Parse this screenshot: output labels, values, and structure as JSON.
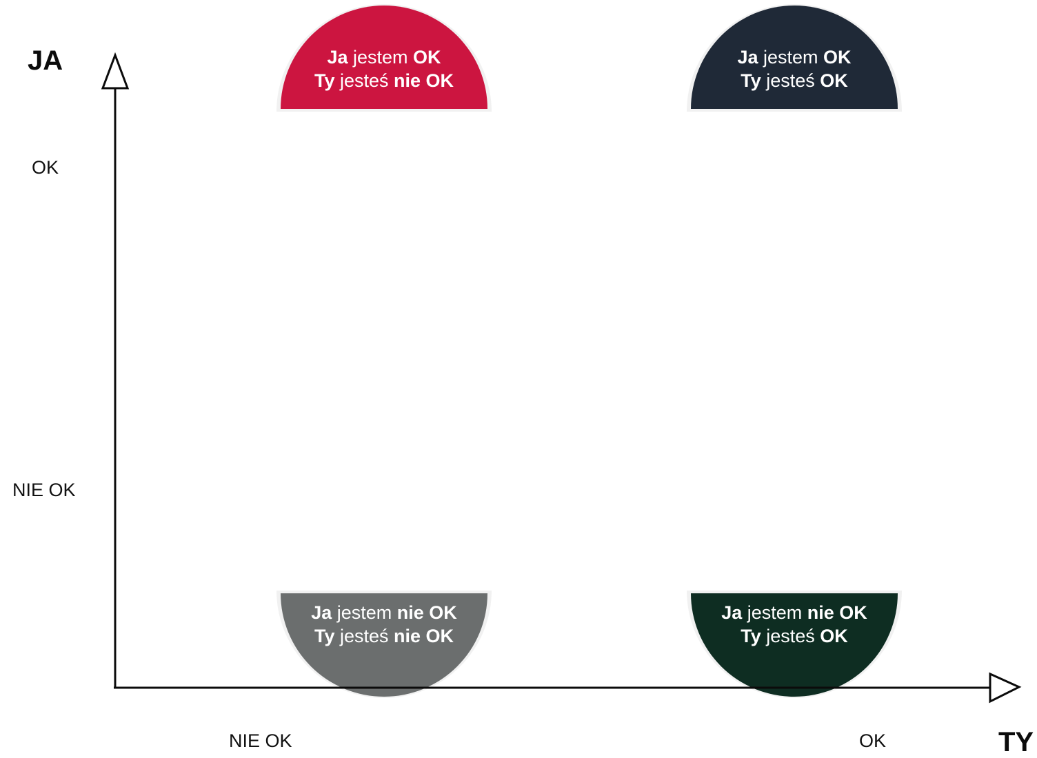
{
  "axes": {
    "y_title": "JA",
    "x_title": "TY",
    "y_ticks": {
      "top": "OK",
      "bottom": "NIE OK"
    },
    "x_ticks": {
      "left": "NIE OK",
      "right": "OK"
    }
  },
  "quadrants": {
    "top_left": {
      "color": "#cc1540",
      "line1": {
        "a": "Ja",
        "b": " jestem ",
        "c": "OK"
      },
      "line2": {
        "a": "Ty",
        "b": " jesteś ",
        "c": "nie OK"
      }
    },
    "top_right": {
      "color": "#1f2937",
      "line1": {
        "a": "Ja",
        "b": " jestem ",
        "c": "OK"
      },
      "line2": {
        "a": "Ty",
        "b": " jesteś ",
        "c": "OK"
      }
    },
    "bottom_left": {
      "color": "#6b6e6e",
      "line1": {
        "a": "Ja",
        "b": " jestem ",
        "c": "nie OK"
      },
      "line2": {
        "a": "Ty",
        "b": " jesteś ",
        "c": "nie OK"
      }
    },
    "bottom_right": {
      "color": "#0e2d22",
      "line1": {
        "a": "Ja",
        "b": " jestem ",
        "c": "nie OK"
      },
      "line2": {
        "a": "Ty",
        "b": " jesteś ",
        "c": "OK"
      }
    }
  }
}
